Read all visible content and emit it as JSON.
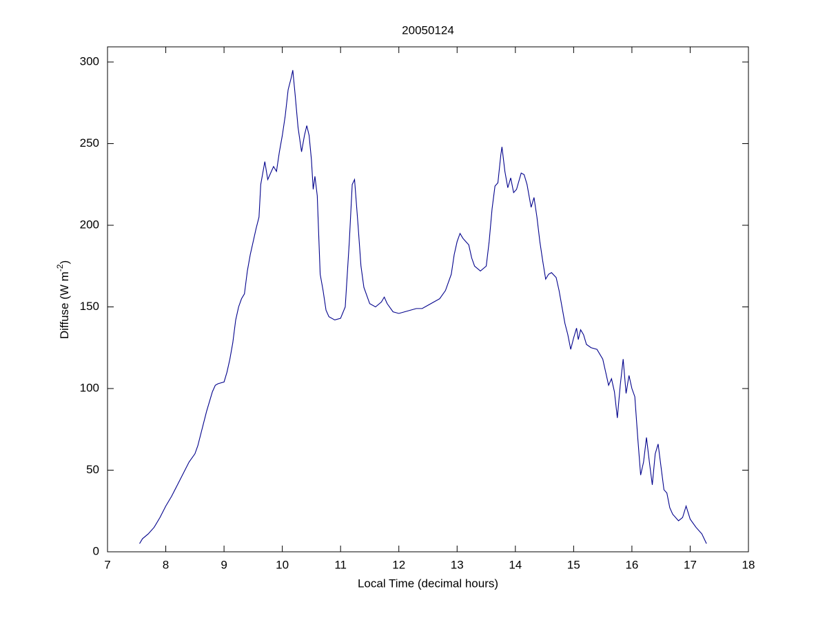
{
  "chart_data": {
    "type": "line",
    "title": "20050124",
    "xlabel": "Local Time (decimal hours)",
    "ylabel": {
      "text": "Diffuse (W m",
      "superscript": "-2",
      "suffix": ")"
    },
    "color": "#00008b",
    "xlim": [
      7,
      18
    ],
    "xticks": [
      7,
      8,
      9,
      10,
      11,
      12,
      13,
      14,
      15,
      16,
      17,
      18
    ],
    "ylim": [
      0,
      300
    ],
    "yticks": [
      0,
      50,
      100,
      150,
      200,
      250,
      300
    ],
    "x": [
      7.55,
      7.6,
      7.7,
      7.8,
      7.9,
      8.0,
      8.1,
      8.2,
      8.3,
      8.4,
      8.5,
      8.55,
      8.6,
      8.7,
      8.8,
      8.85,
      8.9,
      9.0,
      9.05,
      9.1,
      9.15,
      9.2,
      9.25,
      9.3,
      9.35,
      9.4,
      9.45,
      9.5,
      9.55,
      9.6,
      9.63,
      9.7,
      9.75,
      9.8,
      9.85,
      9.9,
      9.95,
      10.0,
      10.05,
      10.1,
      10.15,
      10.18,
      10.22,
      10.27,
      10.33,
      10.38,
      10.42,
      10.46,
      10.5,
      10.53,
      10.56,
      10.6,
      10.65,
      10.7,
      10.75,
      10.8,
      10.9,
      11.0,
      11.08,
      11.15,
      11.2,
      11.24,
      11.3,
      11.35,
      11.4,
      11.5,
      11.6,
      11.7,
      11.75,
      11.8,
      11.9,
      12.0,
      12.1,
      12.2,
      12.3,
      12.4,
      12.5,
      12.6,
      12.7,
      12.8,
      12.9,
      12.95,
      13.0,
      13.05,
      13.1,
      13.15,
      13.2,
      13.25,
      13.3,
      13.4,
      13.5,
      13.55,
      13.6,
      13.65,
      13.7,
      13.75,
      13.77,
      13.82,
      13.87,
      13.92,
      13.97,
      14.02,
      14.1,
      14.15,
      14.2,
      14.27,
      14.32,
      14.37,
      14.42,
      14.47,
      14.52,
      14.57,
      14.62,
      14.7,
      14.75,
      14.8,
      14.85,
      14.9,
      14.95,
      15.0,
      15.05,
      15.08,
      15.12,
      15.17,
      15.22,
      15.3,
      15.4,
      15.5,
      15.55,
      15.6,
      15.65,
      15.7,
      15.75,
      15.8,
      15.85,
      15.9,
      15.95,
      16.0,
      16.05,
      16.1,
      16.15,
      16.2,
      16.25,
      16.3,
      16.35,
      16.4,
      16.45,
      16.5,
      16.55,
      16.6,
      16.65,
      16.7,
      16.8,
      16.87,
      16.93,
      17.0,
      17.1,
      17.2,
      17.28
    ],
    "values": [
      5,
      8,
      11,
      15,
      21,
      28,
      34,
      41,
      48,
      55,
      60,
      65,
      72,
      86,
      98,
      102,
      103,
      104,
      110,
      118,
      128,
      142,
      150,
      155,
      158,
      172,
      182,
      190,
      198,
      205,
      225,
      239,
      228,
      232,
      236,
      233,
      245,
      255,
      267,
      283,
      290,
      295,
      280,
      260,
      245,
      255,
      261,
      255,
      240,
      222,
      230,
      218,
      170,
      160,
      148,
      144,
      142,
      143,
      150,
      190,
      225,
      228,
      200,
      175,
      162,
      152,
      150,
      153,
      156,
      152,
      147,
      146,
      147,
      148,
      149,
      149,
      151,
      153,
      155,
      160,
      170,
      182,
      190,
      195,
      192,
      190,
      188,
      180,
      175,
      172,
      175,
      190,
      210,
      224,
      226,
      243,
      248,
      233,
      223,
      229,
      220,
      222,
      232,
      231,
      225,
      211,
      217,
      205,
      190,
      178,
      167,
      170,
      171,
      168,
      160,
      150,
      140,
      133,
      124,
      131,
      137,
      130,
      136,
      133,
      127,
      125,
      124,
      118,
      110,
      102,
      106,
      98,
      82,
      102,
      118,
      97,
      108,
      100,
      95,
      70,
      47,
      55,
      70,
      55,
      41,
      60,
      66,
      52,
      38,
      36,
      27,
      23,
      19,
      21,
      28,
      20,
      15,
      11,
      5
    ]
  }
}
